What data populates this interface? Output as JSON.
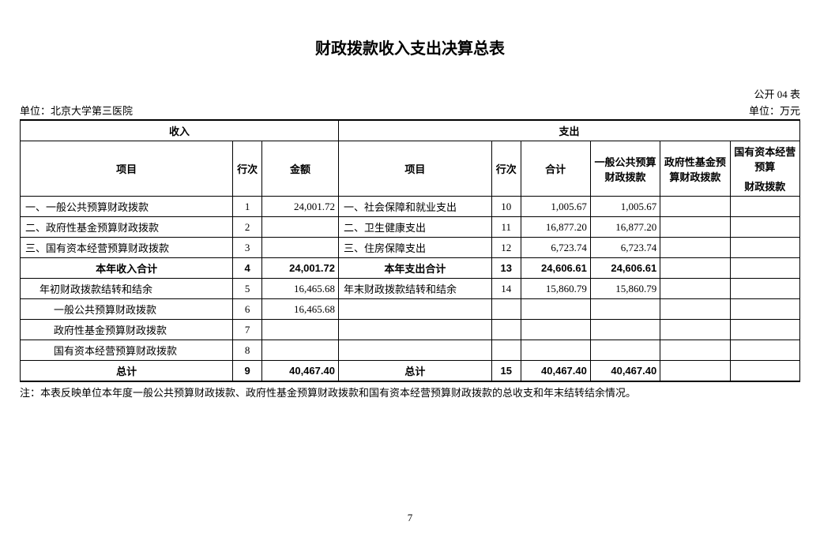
{
  "title": "财政拨款收入支出决算总表",
  "form_no": "公开 04 表",
  "org_label": "单位：北京大学第三医院",
  "unit_label": "单位：万元",
  "headers": {
    "income": "收入",
    "expense": "支出",
    "item": "项目",
    "row": "行次",
    "amount": "金额",
    "total": "合计",
    "c1": "一般公共预算财政拨款",
    "c2": "政府性基金预算财政拨款",
    "c3_a": "国有资本经营预算",
    "c3_b": "财政拨款"
  },
  "rows": [
    {
      "li": "一、一般公共预算财政拨款",
      "lr": "1",
      "la": "24,001.72",
      "ri": "一、社会保障和就业支出",
      "rr": "10",
      "rt": "1,005.67",
      "rc1": "1,005.67",
      "rc2": "",
      "rc3": "",
      "cls": "left"
    },
    {
      "li": "二、政府性基金预算财政拨款",
      "lr": "2",
      "la": "",
      "ri": "二、卫生健康支出",
      "rr": "11",
      "rt": "16,877.20",
      "rc1": "16,877.20",
      "rc2": "",
      "rc3": "",
      "cls": "left"
    },
    {
      "li": "三、国有资本经营预算财政拨款",
      "lr": "3",
      "la": "",
      "ri": "三、住房保障支出",
      "rr": "12",
      "rt": "6,723.74",
      "rc1": "6,723.74",
      "rc2": "",
      "rc3": "",
      "cls": "left"
    },
    {
      "li": "本年收入合计",
      "lr": "4",
      "la": "24,001.72",
      "ri": "本年支出合计",
      "rr": "13",
      "rt": "24,606.61",
      "rc1": "24,606.61",
      "rc2": "",
      "rc3": "",
      "cls": "center bold"
    },
    {
      "li": "年初财政拨款结转和结余",
      "lr": "5",
      "la": "16,465.68",
      "ri": "年末财政拨款结转和结余",
      "rr": "14",
      "rt": "15,860.79",
      "rc1": "15,860.79",
      "rc2": "",
      "rc3": "",
      "cls": "indent1"
    },
    {
      "li": "一般公共预算财政拨款",
      "lr": "6",
      "la": "16,465.68",
      "ri": "",
      "rr": "",
      "rt": "",
      "rc1": "",
      "rc2": "",
      "rc3": "",
      "cls": "indent2"
    },
    {
      "li": "政府性基金预算财政拨款",
      "lr": "7",
      "la": "",
      "ri": "",
      "rr": "",
      "rt": "",
      "rc1": "",
      "rc2": "",
      "rc3": "",
      "cls": "indent2"
    },
    {
      "li": "国有资本经营预算财政拨款",
      "lr": "8",
      "la": "",
      "ri": "",
      "rr": "",
      "rt": "",
      "rc1": "",
      "rc2": "",
      "rc3": "",
      "cls": "indent2"
    },
    {
      "li": "总计",
      "lr": "9",
      "la": "40,467.40",
      "ri": "总计",
      "rr": "15",
      "rt": "40,467.40",
      "rc1": "40,467.40",
      "rc2": "",
      "rc3": "",
      "cls": "center bold"
    }
  ],
  "note": "注：本表反映单位本年度一般公共预算财政拨款、政府性基金预算财政拨款和国有资本经营预算财政拨款的总收支和年末结转结余情况。",
  "page_no": "7",
  "style": {
    "text_color": "#000000",
    "bg_color": "#ffffff",
    "border_color": "#000000",
    "title_fontsize_pt": 20,
    "body_fontsize_pt": 13
  }
}
